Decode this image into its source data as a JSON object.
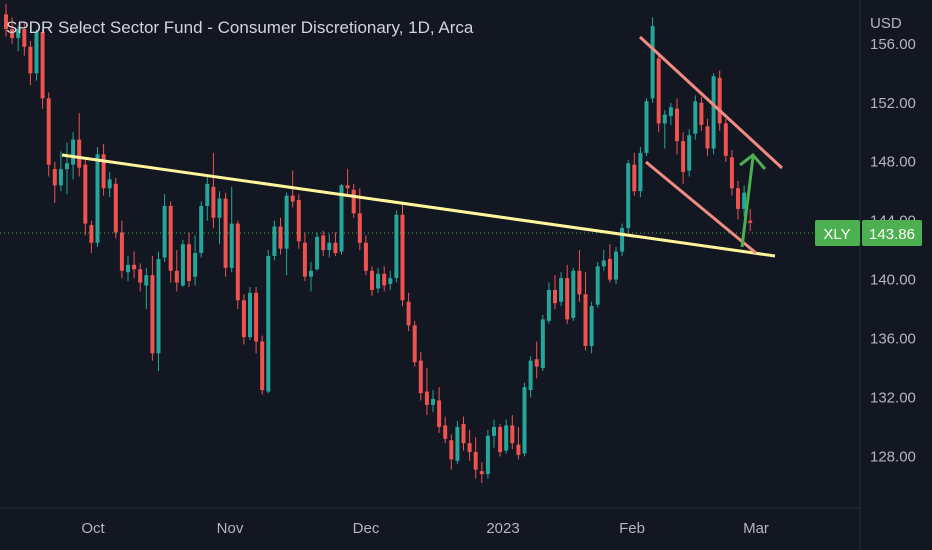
{
  "chart_title": "SPDR Select Sector Fund - Consumer Discretionary, 1D, Arca",
  "chart_data": {
    "type": "candlestick",
    "title": "SPDR Select Sector Fund - Consumer Discretionary, 1D, Arca",
    "currency": "USD",
    "ylim": [
      124.5,
      158.5
    ],
    "y_ticks": [
      "156.00",
      "152.00",
      "148.00",
      "144.00",
      "140.00",
      "136.00",
      "132.00",
      "128.00"
    ],
    "x_labels": [
      "Oct",
      "Nov",
      "Dec",
      "2023",
      "Feb",
      "Mar"
    ],
    "last_price": {
      "symbol": "XLY",
      "value": "143.86"
    },
    "colors": {
      "up": "#26a69a",
      "down": "#ef5350",
      "background": "#131722",
      "trendline": "#fff59d",
      "channel": "#f28b82",
      "arrow": "#4caf50",
      "tag": "#4caf50"
    },
    "grid": false,
    "candles": [
      [
        158.0,
        158.7,
        156.5,
        157.0
      ],
      [
        157.0,
        157.8,
        156.0,
        156.4
      ],
      [
        156.4,
        157.2,
        155.5,
        157.0
      ],
      [
        157.0,
        157.5,
        155.2,
        155.8
      ],
      [
        155.8,
        156.2,
        153.2,
        154.0
      ],
      [
        154.0,
        157.0,
        153.5,
        156.8
      ],
      [
        156.8,
        157.0,
        151.6,
        152.3
      ],
      [
        152.3,
        152.7,
        147.0,
        147.8
      ],
      [
        147.5,
        148.0,
        145.2,
        146.4
      ],
      [
        146.4,
        148.7,
        146.0,
        147.5
      ],
      [
        147.5,
        149.3,
        145.8,
        147.9
      ],
      [
        147.8,
        150.0,
        146.8,
        149.5
      ],
      [
        149.5,
        151.3,
        147.0,
        147.6
      ],
      [
        147.8,
        148.3,
        143.0,
        143.8
      ],
      [
        143.7,
        144.0,
        141.8,
        142.5
      ],
      [
        142.5,
        149.0,
        142.2,
        148.5
      ],
      [
        148.5,
        149.2,
        145.7,
        146.2
      ],
      [
        146.2,
        147.3,
        145.6,
        146.8
      ],
      [
        146.5,
        146.9,
        142.8,
        143.2
      ],
      [
        143.2,
        144.0,
        140.1,
        140.6
      ],
      [
        140.5,
        141.6,
        139.9,
        141.0
      ],
      [
        141.0,
        141.9,
        140.1,
        140.7
      ],
      [
        140.7,
        141.1,
        139.2,
        139.8
      ],
      [
        139.6,
        140.8,
        138.0,
        140.3
      ],
      [
        140.3,
        141.6,
        134.5,
        135.0
      ],
      [
        135.0,
        141.9,
        133.8,
        141.4
      ],
      [
        141.5,
        145.8,
        141.2,
        145.0
      ],
      [
        145.0,
        145.3,
        139.8,
        140.6
      ],
      [
        140.6,
        142.0,
        139.2,
        139.8
      ],
      [
        139.6,
        142.7,
        139.5,
        142.4
      ],
      [
        142.4,
        143.2,
        139.5,
        139.9
      ],
      [
        140.2,
        143.0,
        139.6,
        141.8
      ],
      [
        141.8,
        145.3,
        141.5,
        145.0
      ],
      [
        145.0,
        147.0,
        144.0,
        146.5
      ],
      [
        146.3,
        148.6,
        143.5,
        144.2
      ],
      [
        144.2,
        146.0,
        142.4,
        145.5
      ],
      [
        145.5,
        145.9,
        140.2,
        140.8
      ],
      [
        140.8,
        146.3,
        140.5,
        143.8
      ],
      [
        143.8,
        144.0,
        138.0,
        138.6
      ],
      [
        138.6,
        139.0,
        135.6,
        136.1
      ],
      [
        136.1,
        139.5,
        135.9,
        139.1
      ],
      [
        139.1,
        139.5,
        135.0,
        135.8
      ],
      [
        135.8,
        136.2,
        132.2,
        132.5
      ],
      [
        132.4,
        142.0,
        132.3,
        141.6
      ],
      [
        141.6,
        144.0,
        141.3,
        143.6
      ],
      [
        143.6,
        144.2,
        141.7,
        142.1
      ],
      [
        142.1,
        145.9,
        140.3,
        145.7
      ],
      [
        145.7,
        147.4,
        144.9,
        145.3
      ],
      [
        145.4,
        145.8,
        142.1,
        142.6
      ],
      [
        142.5,
        143.2,
        139.9,
        140.2
      ],
      [
        140.2,
        141.2,
        139.2,
        140.6
      ],
      [
        140.7,
        143.2,
        140.6,
        142.9
      ],
      [
        143.0,
        143.3,
        141.6,
        142.0
      ],
      [
        142.0,
        143.1,
        141.5,
        142.5
      ],
      [
        142.5,
        143.2,
        141.6,
        141.8
      ],
      [
        141.9,
        146.5,
        141.7,
        146.4
      ],
      [
        146.4,
        147.5,
        145.6,
        146.2
      ],
      [
        146.1,
        146.5,
        144.2,
        144.5
      ],
      [
        144.5,
        146.2,
        142.0,
        142.5
      ],
      [
        142.5,
        143.0,
        140.3,
        140.6
      ],
      [
        140.6,
        140.9,
        138.9,
        139.3
      ],
      [
        139.4,
        140.8,
        139.1,
        140.4
      ],
      [
        140.4,
        140.9,
        139.2,
        139.6
      ],
      [
        139.7,
        140.6,
        139.3,
        140.1
      ],
      [
        140.1,
        144.7,
        139.8,
        144.4
      ],
      [
        144.4,
        145.1,
        138.2,
        138.6
      ],
      [
        138.5,
        139.1,
        136.5,
        136.9
      ],
      [
        136.9,
        137.2,
        134.1,
        134.4
      ],
      [
        134.5,
        135.1,
        131.8,
        132.3
      ],
      [
        132.4,
        134.0,
        130.8,
        131.5
      ],
      [
        131.5,
        132.5,
        131.0,
        131.9
      ],
      [
        131.8,
        132.7,
        129.6,
        130.0
      ],
      [
        130.1,
        130.7,
        128.9,
        129.2
      ],
      [
        129.1,
        129.5,
        127.1,
        127.8
      ],
      [
        127.7,
        130.4,
        127.5,
        130.0
      ],
      [
        130.2,
        130.7,
        128.4,
        128.9
      ],
      [
        128.9,
        129.8,
        127.7,
        128.3
      ],
      [
        128.3,
        129.3,
        126.5,
        127.1
      ],
      [
        127.0,
        127.6,
        126.2,
        126.8
      ],
      [
        126.8,
        129.8,
        126.5,
        129.4
      ],
      [
        129.4,
        130.5,
        128.6,
        130.0
      ],
      [
        130.0,
        130.2,
        128.0,
        128.3
      ],
      [
        128.4,
        130.5,
        128.2,
        130.1
      ],
      [
        130.1,
        130.8,
        128.5,
        128.9
      ],
      [
        128.8,
        130.0,
        127.8,
        128.1
      ],
      [
        128.2,
        133.0,
        128.0,
        132.7
      ],
      [
        132.5,
        134.8,
        132.0,
        134.5
      ],
      [
        134.6,
        135.8,
        133.3,
        134.1
      ],
      [
        134.0,
        137.6,
        133.8,
        137.3
      ],
      [
        137.2,
        139.8,
        137.0,
        139.3
      ],
      [
        139.3,
        140.3,
        138.0,
        138.4
      ],
      [
        138.5,
        140.5,
        138.2,
        140.1
      ],
      [
        140.1,
        141.0,
        137.0,
        137.3
      ],
      [
        137.4,
        140.8,
        137.2,
        140.6
      ],
      [
        140.6,
        142.0,
        138.5,
        139.0
      ],
      [
        139.0,
        140.5,
        135.2,
        135.5
      ],
      [
        135.5,
        138.5,
        135.0,
        138.2
      ],
      [
        138.3,
        141.2,
        138.1,
        140.9
      ],
      [
        140.9,
        142.0,
        140.6,
        141.3
      ],
      [
        141.4,
        142.4,
        139.8,
        140.0
      ],
      [
        140.0,
        142.2,
        139.7,
        141.9
      ],
      [
        141.9,
        143.8,
        141.6,
        143.5
      ],
      [
        143.5,
        148.1,
        143.2,
        147.9
      ],
      [
        147.8,
        148.6,
        145.7,
        146.0
      ],
      [
        146.0,
        149.0,
        145.6,
        148.6
      ],
      [
        148.6,
        152.3,
        148.4,
        152.1
      ],
      [
        152.3,
        157.8,
        152.0,
        157.2
      ],
      [
        155.0,
        155.3,
        150.0,
        150.6
      ],
      [
        150.6,
        151.5,
        148.9,
        151.2
      ],
      [
        151.1,
        152.0,
        150.5,
        151.7
      ],
      [
        151.6,
        152.3,
        148.5,
        149.4
      ],
      [
        149.4,
        150.0,
        146.5,
        147.3
      ],
      [
        147.4,
        150.2,
        147.0,
        149.8
      ],
      [
        149.9,
        152.5,
        149.5,
        152.1
      ],
      [
        152.0,
        152.4,
        150.1,
        150.5
      ],
      [
        150.4,
        150.9,
        148.4,
        148.9
      ],
      [
        148.9,
        154.0,
        148.5,
        153.8
      ],
      [
        153.7,
        154.2,
        150.1,
        150.6
      ],
      [
        150.6,
        150.9,
        148.0,
        148.4
      ],
      [
        148.3,
        148.8,
        145.7,
        146.2
      ],
      [
        146.2,
        146.7,
        144.1,
        144.8
      ],
      [
        144.8,
        146.4,
        144.3,
        145.9
      ],
      [
        144.0,
        144.8,
        143.3,
        143.86
      ]
    ]
  }
}
